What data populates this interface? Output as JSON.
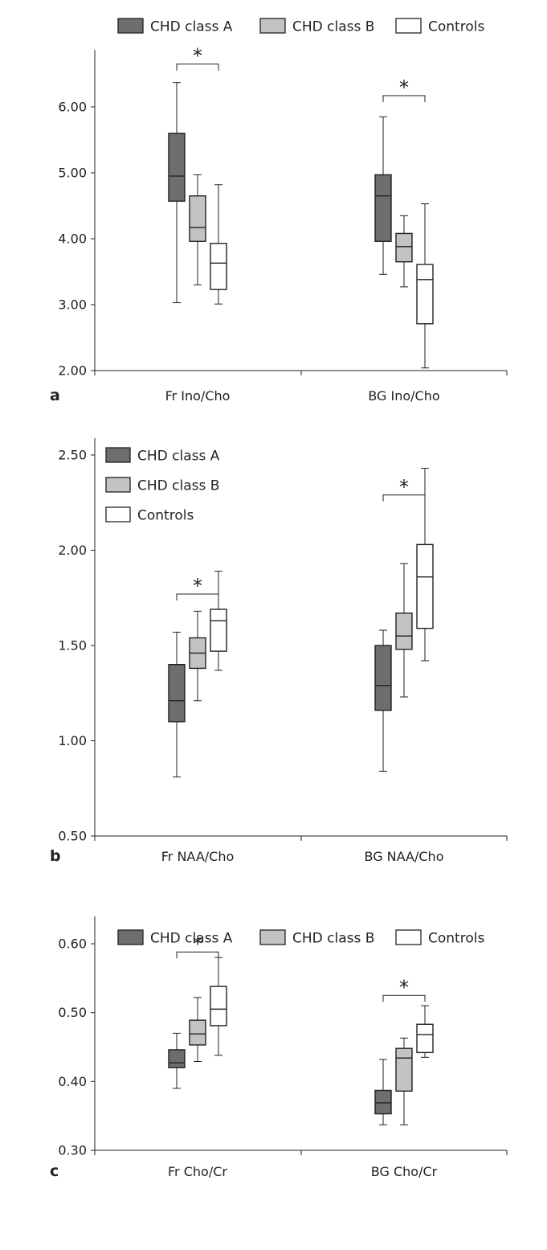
{
  "colors": {
    "CHD class A": "#6e6e6e",
    "CHD class B": "#c3c3c3",
    "Controls": "#ffffff"
  },
  "chart_data": [
    {
      "type": "box",
      "panel_letter": "a",
      "ylim": [
        2.0,
        6.0
      ],
      "ytick_values": [
        2.0,
        3.0,
        4.0,
        5.0,
        6.0
      ],
      "ytick_labels": [
        "2.00",
        "3.00",
        "4.00",
        "5.00",
        "6.00"
      ],
      "categories": [
        "Fr Ino/Cho",
        "BG Ino/Cho"
      ],
      "legend": {
        "placement": "top",
        "entries": [
          "CHD class A",
          "CHD class B",
          "Controls"
        ]
      },
      "series": [
        {
          "name": "CHD class A",
          "boxes": [
            {
              "min": 3.03,
              "q1": 4.57,
              "median": 4.95,
              "q3": 5.6,
              "max": 6.37
            },
            {
              "min": 3.46,
              "q1": 3.96,
              "median": 4.65,
              "q3": 4.97,
              "max": 5.85
            }
          ]
        },
        {
          "name": "CHD class B",
          "boxes": [
            {
              "min": 3.3,
              "q1": 3.96,
              "median": 4.17,
              "q3": 4.65,
              "max": 4.97
            },
            {
              "min": 3.27,
              "q1": 3.65,
              "median": 3.88,
              "q3": 4.08,
              "max": 4.35
            }
          ]
        },
        {
          "name": "Controls",
          "boxes": [
            {
              "min": 3.01,
              "q1": 3.23,
              "median": 3.63,
              "q3": 3.93,
              "max": 4.82
            },
            {
              "min": 2.04,
              "q1": 2.71,
              "median": 3.38,
              "q3": 3.61,
              "max": 4.53
            }
          ]
        }
      ],
      "significance": [
        {
          "category": "Fr Ino/Cho",
          "label": "*",
          "level": 6.65
        },
        {
          "category": "BG Ino/Cho",
          "label": "*",
          "level": 6.17
        }
      ]
    },
    {
      "type": "box",
      "panel_letter": "b",
      "ylim": [
        0.5,
        2.5
      ],
      "ytick_values": [
        0.5,
        1.0,
        1.5,
        2.0,
        2.5
      ],
      "ytick_labels": [
        "0.50",
        "1.00",
        "1.50",
        "2.00",
        "2.50"
      ],
      "categories": [
        "Fr NAA/Cho",
        "BG NAA/Cho"
      ],
      "legend": {
        "placement": "top-left",
        "entries": [
          "CHD class A",
          "CHD class B",
          "Controls"
        ]
      },
      "series": [
        {
          "name": "CHD class A",
          "boxes": [
            {
              "min": 0.81,
              "q1": 1.1,
              "median": 1.21,
              "q3": 1.4,
              "max": 1.57
            },
            {
              "min": 0.84,
              "q1": 1.16,
              "median": 1.29,
              "q3": 1.5,
              "max": 1.58
            }
          ]
        },
        {
          "name": "CHD class B",
          "boxes": [
            {
              "min": 1.21,
              "q1": 1.38,
              "median": 1.46,
              "q3": 1.54,
              "max": 1.68
            },
            {
              "min": 1.23,
              "q1": 1.48,
              "median": 1.55,
              "q3": 1.67,
              "max": 1.93
            }
          ]
        },
        {
          "name": "Controls",
          "boxes": [
            {
              "min": 1.37,
              "q1": 1.47,
              "median": 1.63,
              "q3": 1.69,
              "max": 1.89
            },
            {
              "min": 1.42,
              "q1": 1.59,
              "median": 1.86,
              "q3": 2.03,
              "max": 2.43
            }
          ]
        }
      ],
      "significance": [
        {
          "category": "Fr NAA/Cho",
          "label": "*",
          "level": 1.77
        },
        {
          "category": "BG NAA/Cho",
          "label": "*",
          "level": 2.29
        }
      ]
    },
    {
      "type": "box",
      "panel_letter": "c",
      "ylim": [
        0.3,
        0.6
      ],
      "ytick_values": [
        0.3,
        0.4,
        0.5,
        0.6
      ],
      "ytick_labels": [
        "0.30",
        "0.40",
        "0.50",
        "0.60"
      ],
      "categories": [
        "Fr Cho/Cr",
        "BG Cho/Cr"
      ],
      "legend": {
        "placement": "top",
        "entries": [
          "CHD class A",
          "CHD class B",
          "Controls"
        ]
      },
      "series": [
        {
          "name": "CHD class A",
          "boxes": [
            {
              "min": 0.39,
              "q1": 0.42,
              "median": 0.427,
              "q3": 0.446,
              "max": 0.47
            },
            {
              "min": 0.337,
              "q1": 0.353,
              "median": 0.369,
              "q3": 0.387,
              "max": 0.432
            }
          ]
        },
        {
          "name": "CHD class B",
          "boxes": [
            {
              "min": 0.429,
              "q1": 0.453,
              "median": 0.469,
              "q3": 0.489,
              "max": 0.522
            },
            {
              "min": 0.337,
              "q1": 0.386,
              "median": 0.434,
              "q3": 0.448,
              "max": 0.463
            }
          ]
        },
        {
          "name": "Controls",
          "boxes": [
            {
              "min": 0.438,
              "q1": 0.481,
              "median": 0.505,
              "q3": 0.538,
              "max": 0.58
            },
            {
              "min": 0.435,
              "q1": 0.442,
              "median": 0.468,
              "q3": 0.483,
              "max": 0.51
            }
          ]
        }
      ],
      "significance": [
        {
          "category": "Fr Cho/Cr",
          "label": "*",
          "level": 0.588
        },
        {
          "category": "BG Cho/Cr",
          "label": "*",
          "level": 0.525
        }
      ]
    }
  ]
}
